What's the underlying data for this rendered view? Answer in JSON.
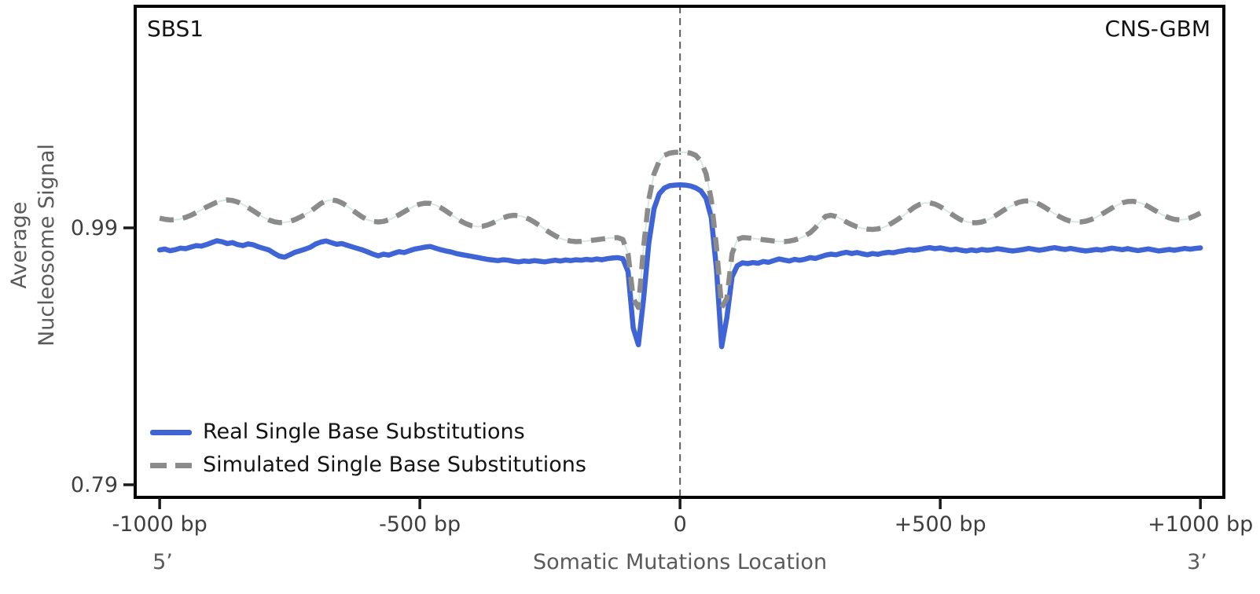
{
  "panel": {
    "signature_label": "SBS1",
    "cohort_label": "CNS-GBM"
  },
  "axes": {
    "y_label": "Average\nNucleosome Signal",
    "x_label": "Somatic Mutations Location",
    "five_prime": "5’",
    "three_prime": "3’",
    "y_ticks": [
      {
        "value": 0.99,
        "label": "0.99"
      },
      {
        "value": 0.79,
        "label": "0.79"
      }
    ],
    "x_ticks": [
      {
        "value": -1000,
        "label": "-1000 bp"
      },
      {
        "value": -500,
        "label": "-500 bp"
      },
      {
        "value": 0,
        "label": "0"
      },
      {
        "value": 500,
        "label": "+500 bp"
      },
      {
        "value": 1000,
        "label": "+1000 bp"
      }
    ]
  },
  "legend": {
    "items": [
      {
        "label": "Real Single Base Substitutions",
        "color": "#3E64D5",
        "style": "solid"
      },
      {
        "label": "Simulated Single Base Substitutions",
        "color": "#8B8B8B",
        "style": "dashed"
      }
    ]
  },
  "colors": {
    "real_line": "#3E64D5",
    "simulated_line": "#8B8B8B",
    "simulated_underlay": "#D8E9E0",
    "spine": "#000000",
    "tick_label": "#3F3F3F",
    "axis_label": "#5A5A5A",
    "center_line": "#5E5E5E"
  },
  "chart_data": {
    "type": "line",
    "title": "",
    "xlabel": "Somatic Mutations Location",
    "ylabel": "Average Nucleosome Signal",
    "signature": "SBS1",
    "cancer_type": "CNS-GBM",
    "x_start": -1000,
    "x_step": 10,
    "x_end": 1000,
    "x_unit": "bp",
    "xlim": [
      -1047,
      1045
    ],
    "ylim": [
      0.7802,
      1.1625
    ],
    "y_tick_values": [
      0.79,
      0.99
    ],
    "x_tick_values": [
      -1000,
      -500,
      0,
      500,
      1000
    ],
    "grid": false,
    "legend_position": "lower left",
    "center_line_x": 0,
    "series": [
      {
        "name": "Real Single Base Substitutions",
        "color": "#3E64D5",
        "line_style": "solid",
        "values": [
          0.9728,
          0.9735,
          0.9722,
          0.973,
          0.9742,
          0.9738,
          0.975,
          0.9762,
          0.9758,
          0.977,
          0.9785,
          0.98,
          0.9792,
          0.9778,
          0.9785,
          0.977,
          0.9762,
          0.9775,
          0.9768,
          0.9752,
          0.974,
          0.9728,
          0.9702,
          0.968,
          0.9672,
          0.969,
          0.971,
          0.9722,
          0.9735,
          0.975,
          0.9775,
          0.979,
          0.9798,
          0.9785,
          0.9772,
          0.9778,
          0.9765,
          0.9752,
          0.974,
          0.9728,
          0.9712,
          0.9695,
          0.9682,
          0.9695,
          0.9688,
          0.9702,
          0.9715,
          0.9708,
          0.9722,
          0.9735,
          0.9742,
          0.975,
          0.9755,
          0.9742,
          0.973,
          0.972,
          0.9712,
          0.97,
          0.9692,
          0.9685,
          0.9678,
          0.967,
          0.9662,
          0.9655,
          0.965,
          0.9645,
          0.9652,
          0.9648,
          0.964,
          0.9635,
          0.9642,
          0.9638,
          0.9645,
          0.964,
          0.9635,
          0.9642,
          0.9648,
          0.9642,
          0.965,
          0.9645,
          0.9652,
          0.9648,
          0.9655,
          0.965,
          0.9658,
          0.9652,
          0.966,
          0.9665,
          0.9668,
          0.966,
          0.956,
          0.912,
          0.899,
          0.935,
          0.978,
          1.005,
          1.0165,
          1.021,
          1.0228,
          1.0233,
          1.0235,
          1.0233,
          1.0226,
          1.0212,
          1.0188,
          1.013,
          0.998,
          0.958,
          0.8975,
          0.92,
          0.952,
          0.9605,
          0.9628,
          0.9622,
          0.963,
          0.9625,
          0.9638,
          0.9632,
          0.9645,
          0.9658,
          0.965,
          0.9642,
          0.9655,
          0.9648,
          0.9656,
          0.9668,
          0.9662,
          0.9675,
          0.9688,
          0.9695,
          0.969,
          0.9702,
          0.971,
          0.97,
          0.9708,
          0.9698,
          0.969,
          0.97,
          0.9694,
          0.9704,
          0.971,
          0.9706,
          0.9716,
          0.9722,
          0.973,
          0.9726,
          0.9732,
          0.974,
          0.9746,
          0.9738,
          0.9744,
          0.9736,
          0.9728,
          0.9734,
          0.9726,
          0.972,
          0.9728,
          0.9722,
          0.9732,
          0.9726,
          0.973,
          0.9738,
          0.9732,
          0.9725,
          0.972,
          0.9726,
          0.9732,
          0.974,
          0.9733,
          0.9726,
          0.9732,
          0.974,
          0.9746,
          0.9738,
          0.9732,
          0.974,
          0.9733,
          0.9726,
          0.972,
          0.9726,
          0.9732,
          0.9727,
          0.9735,
          0.9742,
          0.9736,
          0.973,
          0.9738,
          0.973,
          0.9723,
          0.973,
          0.9736,
          0.9728,
          0.972,
          0.9726,
          0.9732,
          0.9726,
          0.9733,
          0.974,
          0.9734,
          0.974,
          0.9744
        ]
      },
      {
        "name": "Simulated Single Base Substitutions",
        "color": "#8B8B8B",
        "line_style": "dashed",
        "values": [
          0.9975,
          0.9967,
          0.9962,
          0.9963,
          0.997,
          0.9982,
          0.9998,
          1.0018,
          1.004,
          1.0062,
          1.0082,
          1.01,
          1.0112,
          1.0117,
          1.0113,
          1.0101,
          1.0082,
          1.0058,
          1.0032,
          1.0006,
          0.9982,
          0.9962,
          0.9948,
          0.9941,
          0.9942,
          0.995,
          0.9964,
          0.9983,
          1.0005,
          1.0028,
          1.006,
          1.009,
          1.011,
          1.0118,
          1.0112,
          1.0095,
          1.007,
          1.004,
          1.001,
          0.9983,
          0.9962,
          0.995,
          0.9946,
          0.995,
          0.9962,
          0.998,
          1.0002,
          1.0026,
          1.005,
          1.007,
          1.0085,
          1.0092,
          1.009,
          1.0078,
          1.0058,
          1.0032,
          1.0004,
          0.9976,
          0.995,
          0.993,
          0.9916,
          0.991,
          0.9912,
          0.9922,
          0.9938,
          0.9958,
          0.9978,
          0.9992,
          0.9998,
          0.9995,
          0.9985,
          0.9968,
          0.9945,
          0.9918,
          0.989,
          0.9862,
          0.9838,
          0.9818,
          0.9805,
          0.9797,
          0.9793,
          0.9794,
          0.9798,
          0.9803,
          0.9808,
          0.9813,
          0.9818,
          0.9822,
          0.9824,
          0.981,
          0.97,
          0.935,
          0.928,
          0.975,
          1.012,
          1.032,
          1.042,
          1.0465,
          1.0482,
          1.0488,
          1.049,
          1.0488,
          1.0482,
          1.0465,
          1.042,
          1.032,
          1.012,
          0.975,
          0.928,
          0.935,
          0.97,
          0.981,
          0.9824,
          0.9822,
          0.9818,
          0.9813,
          0.9808,
          0.9803,
          0.9798,
          0.9794,
          0.9793,
          0.9797,
          0.9805,
          0.9818,
          0.9838,
          0.9862,
          0.99,
          0.995,
          0.999,
          0.9998,
          0.9988,
          0.9968,
          0.9945,
          0.9925,
          0.9908,
          0.9896,
          0.989,
          0.9888,
          0.9892,
          0.9902,
          0.992,
          0.9944,
          0.997,
          0.9998,
          1.003,
          1.006,
          1.0082,
          1.0093,
          1.0095,
          1.0085,
          1.0065,
          1.004,
          1.0012,
          0.9985,
          0.9962,
          0.9948,
          0.9941,
          0.994,
          0.9946,
          0.996,
          0.998,
          1.0005,
          1.0032,
          1.0058,
          1.008,
          1.0098,
          1.0108,
          1.011,
          1.0102,
          1.0085,
          1.0062,
          1.0036,
          1.001,
          0.9986,
          0.9966,
          0.9952,
          0.9946,
          0.9946,
          0.9952,
          0.9965,
          0.9984,
          1.0006,
          1.003,
          1.0055,
          1.0077,
          1.0095,
          1.0105,
          1.0107,
          1.01,
          1.0086,
          1.0066,
          1.0042,
          1.0018,
          0.9996,
          0.9978,
          0.9966,
          0.9962,
          0.9966,
          0.9978,
          0.9995,
          1.0015
        ]
      }
    ]
  }
}
